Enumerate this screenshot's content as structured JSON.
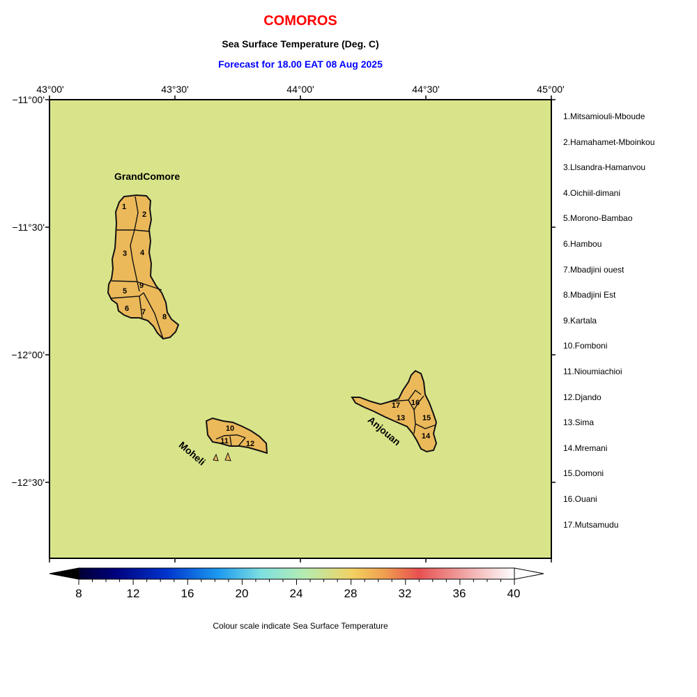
{
  "title": "COMOROS",
  "subtitle": "Sea Surface Temperature (Deg. C)",
  "forecast": "Forecast for  18.00 EAT 08 Aug 2025",
  "lon_labels": [
    "43°00'",
    "43°30'",
    "44°00'",
    "44°30'",
    "45°00'"
  ],
  "lat_labels": [
    "−11°00'",
    "−11°30'",
    "−12°00'",
    "−12°30'"
  ],
  "island_labels": {
    "grand_comore": "GrandComore",
    "moheli": "Moheli",
    "anjouan": "Anjouan"
  },
  "region_numbers": [
    "1",
    "2",
    "3",
    "4",
    "5",
    "6",
    "7",
    "8",
    "9",
    "10",
    "11",
    "12",
    "13",
    "14",
    "15",
    "16",
    "17"
  ],
  "regions": [
    "1.Mitsamiouli-Mboude",
    "2.Hamahamet-Mboinkou",
    "3.Llsandra-Hamanvou",
    "4.Oichiil-dimani",
    "5.Morono-Bambao",
    "6.Hambou",
    "7.Mbadjini ouest",
    "8.Mbadjini Est",
    "9.Kartala",
    "10.Fomboni",
    "11.Nioumiachioi",
    "12.Djando",
    "13.Sima",
    "14.Mremani",
    "15.Domoni",
    "16.Ouani",
    "17.Mutsamudu"
  ],
  "colorbar": {
    "ticks": [
      "8",
      "12",
      "16",
      "20",
      "24",
      "28",
      "32",
      "36",
      "40"
    ],
    "caption": "Colour scale indicate Sea Surface Temperature"
  },
  "colors": {
    "sea": "#d9e48a",
    "land": "#ebb95a",
    "title": "#ff0000",
    "forecast": "#0000ff"
  }
}
